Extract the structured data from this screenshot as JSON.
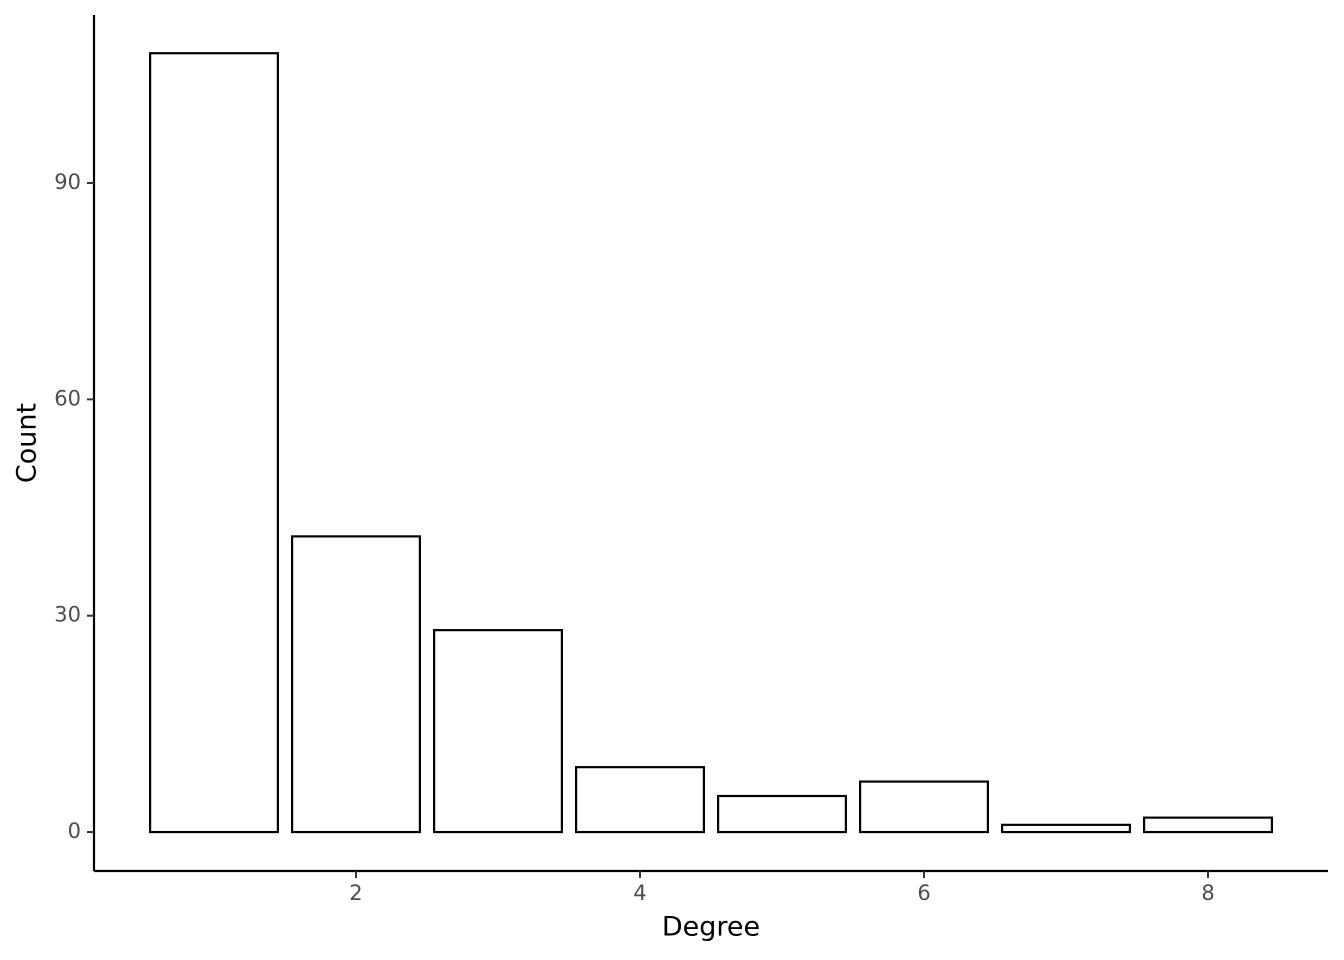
{
  "chart_data": {
    "type": "bar",
    "x_label": "Degree",
    "y_label": "Count",
    "x": [
      1,
      2,
      3,
      4,
      5,
      6,
      7,
      8
    ],
    "values": [
      108,
      41,
      28,
      9,
      5,
      7,
      1,
      2
    ],
    "color": "#ffffff",
    "edge_color": "#000000",
    "xlim": [
      0.155,
      8.845
    ],
    "xticks": [
      2,
      4,
      6,
      8
    ],
    "ylim": [
      -5.4,
      113.3
    ],
    "yticks": [
      0,
      30,
      60,
      90
    ],
    "grid": false
  }
}
